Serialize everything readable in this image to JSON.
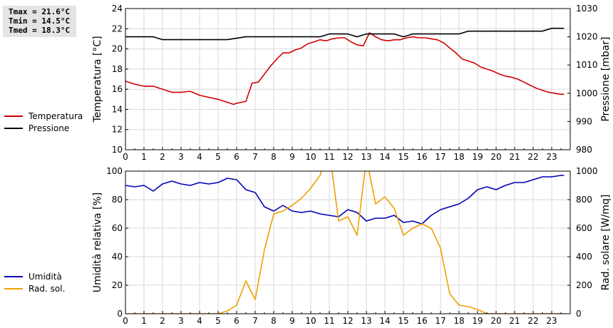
{
  "stats": {
    "tmax": "Tmax = 21.6°C",
    "tmin": "Tmin = 14.5°C",
    "tmed": "Tmed = 18.3°C"
  },
  "colors": {
    "temperature": "#d00000",
    "pressure": "#000000",
    "humidity": "#0000b4",
    "radiation": "#f0a000",
    "grid": "#d8d8d8"
  },
  "chart_data": [
    {
      "type": "line",
      "xlim": [
        0,
        24
      ],
      "xticks": [
        0,
        1,
        2,
        3,
        4,
        5,
        6,
        7,
        8,
        9,
        10,
        11,
        12,
        13,
        14,
        15,
        16,
        17,
        18,
        19,
        20,
        21,
        22,
        23
      ],
      "ylabel": "Temperatura [°C]",
      "y2label": "Pressione [mbar]",
      "ylim": [
        10,
        24
      ],
      "yticks": [
        10,
        12,
        14,
        16,
        18,
        20,
        22,
        24
      ],
      "y2lim": [
        980,
        1030
      ],
      "y2ticks": [
        980,
        990,
        1000,
        1010,
        1020,
        1030
      ],
      "grid": true,
      "legend_position": "left",
      "series": [
        {
          "name": "Temperatura",
          "axis": "left",
          "x": [
            0,
            0.5,
            1,
            1.5,
            2,
            2.5,
            3,
            3.5,
            4,
            4.5,
            5,
            5.5,
            5.83,
            6,
            6.5,
            6.83,
            7.17,
            7.5,
            7.83,
            8.17,
            8.5,
            8.83,
            9.17,
            9.5,
            9.83,
            10.17,
            10.5,
            10.83,
            11.17,
            11.5,
            11.83,
            12.17,
            12.5,
            12.83,
            13.17,
            13.5,
            13.83,
            14.17,
            14.5,
            14.83,
            15.17,
            15.5,
            15.83,
            16.17,
            16.5,
            16.83,
            17.17,
            17.5,
            17.83,
            18.17,
            18.5,
            18.83,
            19.17,
            19.5,
            19.83,
            20.17,
            20.5,
            20.83,
            21.17,
            21.5,
            21.83,
            22.17,
            22.5,
            22.83,
            23.17,
            23.5,
            23.67
          ],
          "values": [
            16.8,
            16.5,
            16.3,
            16.3,
            16.0,
            15.7,
            15.7,
            15.8,
            15.4,
            15.2,
            15.0,
            14.7,
            14.5,
            14.6,
            14.8,
            16.6,
            16.7,
            17.5,
            18.3,
            19.0,
            19.6,
            19.6,
            19.9,
            20.1,
            20.5,
            20.7,
            20.9,
            20.8,
            21.0,
            21.1,
            21.1,
            20.7,
            20.4,
            20.3,
            21.6,
            21.2,
            20.9,
            20.8,
            20.9,
            20.9,
            21.1,
            21.2,
            21.1,
            21.1,
            21.0,
            20.9,
            20.6,
            20.1,
            19.6,
            19.0,
            18.8,
            18.6,
            18.2,
            18.0,
            17.8,
            17.5,
            17.3,
            17.2,
            17.0,
            16.7,
            16.4,
            16.1,
            15.9,
            15.7,
            15.6,
            15.5,
            15.5
          ],
          "color": "#d00000"
        },
        {
          "name": "Pressione",
          "axis": "right",
          "x": [
            0,
            1.5,
            2,
            5.5,
            6.5,
            10.5,
            11,
            12,
            12.5,
            13,
            14.5,
            15,
            15.5,
            18,
            18.5,
            22.5,
            23,
            23.67
          ],
          "values": [
            1020,
            1020,
            1019,
            1019,
            1020,
            1020,
            1021,
            1021,
            1020,
            1021,
            1021,
            1020,
            1021,
            1021,
            1022,
            1022,
            1023,
            1023
          ],
          "color": "#000000"
        }
      ]
    },
    {
      "type": "line",
      "xlim": [
        0,
        24
      ],
      "xticks": [
        0,
        1,
        2,
        3,
        4,
        5,
        6,
        7,
        8,
        9,
        10,
        11,
        12,
        13,
        14,
        15,
        16,
        17,
        18,
        19,
        20,
        21,
        22,
        23
      ],
      "ylabel": "Umidità relativa [%]",
      "y2label": "Rad. solare [W/mq]",
      "ylim": [
        0,
        100
      ],
      "yticks": [
        0,
        20,
        40,
        60,
        80,
        100
      ],
      "y2lim": [
        0,
        1000
      ],
      "y2ticks": [
        0,
        200,
        400,
        600,
        800,
        1000
      ],
      "grid": true,
      "legend_position": "left",
      "series": [
        {
          "name": "Umidità",
          "axis": "left",
          "x": [
            0,
            0.5,
            1,
            1.5,
            2,
            2.5,
            3,
            3.5,
            4,
            4.5,
            5,
            5.5,
            6,
            6.5,
            7,
            7.5,
            8,
            8.5,
            9,
            9.5,
            10,
            10.5,
            11,
            11.5,
            12,
            12.5,
            13,
            13.5,
            14,
            14.5,
            15,
            15.5,
            16,
            16.5,
            17,
            17.5,
            18,
            18.5,
            19,
            19.5,
            20,
            20.5,
            21,
            21.5,
            22,
            22.5,
            23,
            23.5,
            23.67
          ],
          "values": [
            90,
            89,
            90,
            86,
            91,
            93,
            91,
            90,
            92,
            91,
            92,
            95,
            94,
            87,
            85,
            75,
            72,
            76,
            72,
            71,
            72,
            70,
            69,
            68,
            73,
            71,
            65,
            67,
            67,
            69,
            64,
            65,
            63,
            69,
            73,
            75,
            77,
            81,
            87,
            89,
            87,
            90,
            92,
            92,
            94,
            96,
            96,
            97,
            97
          ],
          "color": "#0000b4"
        },
        {
          "name": "Rad. sol.",
          "axis": "right",
          "x": [
            0,
            1,
            2,
            3,
            4,
            5,
            5.5,
            6,
            6.5,
            7,
            7.5,
            8,
            8.5,
            9,
            9.5,
            10,
            10.5,
            11,
            11.5,
            12,
            12.5,
            13,
            13.5,
            14,
            14.5,
            15,
            15.5,
            16,
            16.5,
            17,
            17.5,
            18,
            18.5,
            19,
            19.5,
            20,
            21,
            22,
            23,
            23.67
          ],
          "values": [
            0,
            0,
            0,
            0,
            0,
            0,
            20,
            60,
            230,
            100,
            450,
            700,
            720,
            760,
            810,
            880,
            970,
            1150,
            650,
            680,
            550,
            1090,
            770,
            820,
            740,
            550,
            600,
            630,
            600,
            460,
            140,
            60,
            50,
            30,
            0,
            0,
            0,
            0,
            0,
            0
          ],
          "color": "#f0a000"
        }
      ]
    }
  ]
}
